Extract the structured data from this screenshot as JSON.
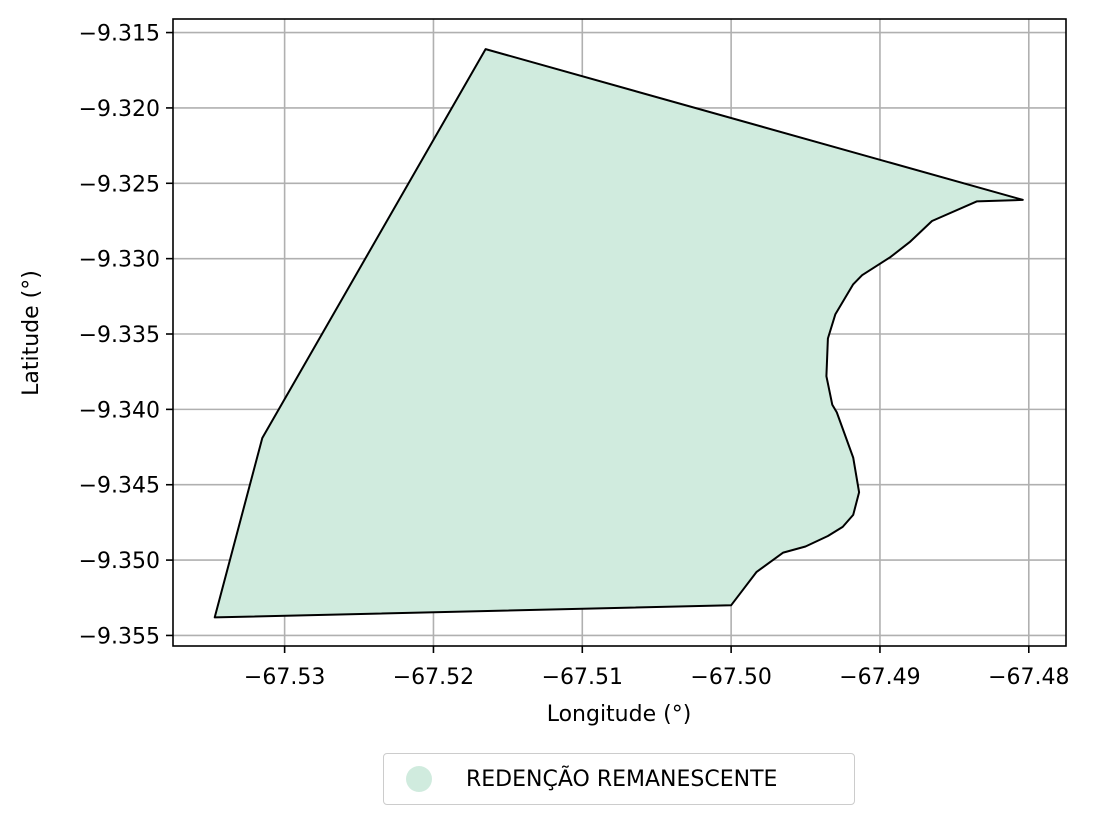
{
  "map": {
    "xlabel": "Longitude (°)",
    "ylabel": "Latitude (°)",
    "xlim": [
      -67.5375,
      -67.4775
    ],
    "ylim": [
      -9.3557,
      -9.3141
    ],
    "x_ticks": [
      -67.53,
      -67.52,
      -67.51,
      -67.5,
      -67.49,
      -67.48
    ],
    "x_tick_labels": [
      "−67.53",
      "−67.52",
      "−67.51",
      "−67.50",
      "−67.49",
      "−67.48"
    ],
    "y_ticks": [
      -9.315,
      -9.32,
      -9.325,
      -9.33,
      -9.335,
      -9.34,
      -9.345,
      -9.35,
      -9.355
    ],
    "y_tick_labels": [
      "−9.315",
      "−9.320",
      "−9.325",
      "−9.330",
      "−9.335",
      "−9.340",
      "−9.345",
      "−9.350",
      "−9.355"
    ],
    "grid": true,
    "fill_color": "#d0ebde",
    "outline_color": "#000000",
    "boundary": [
      [
        -67.5165,
        -9.3161
      ],
      [
        -67.4804,
        -9.3261
      ],
      [
        -67.4835,
        -9.3262
      ],
      [
        -67.4865,
        -9.3275
      ],
      [
        -67.488,
        -9.3289
      ],
      [
        -67.4893,
        -9.3299
      ],
      [
        -67.4912,
        -9.3311
      ],
      [
        -67.4918,
        -9.3317
      ],
      [
        -67.493,
        -9.3337
      ],
      [
        -67.4935,
        -9.3353
      ],
      [
        -67.4936,
        -9.3378
      ],
      [
        -67.4932,
        -9.3397
      ],
      [
        -67.4929,
        -9.3402
      ],
      [
        -67.4918,
        -9.3432
      ],
      [
        -67.4914,
        -9.3455
      ],
      [
        -67.4918,
        -9.347
      ],
      [
        -67.4925,
        -9.3478
      ],
      [
        -67.4935,
        -9.3484
      ],
      [
        -67.495,
        -9.3491
      ],
      [
        -67.4965,
        -9.3495
      ],
      [
        -67.4983,
        -9.3508
      ],
      [
        -67.4993,
        -9.3521
      ],
      [
        -67.5,
        -9.353
      ],
      [
        -67.5347,
        -9.3538
      ],
      [
        -67.5315,
        -9.3419
      ]
    ],
    "legend": {
      "label": "REDENÇÃO REMANESCENTE",
      "position": "bottom-center",
      "marker_color": "#d0ebde"
    }
  }
}
